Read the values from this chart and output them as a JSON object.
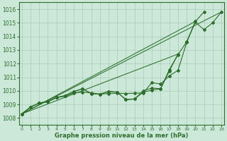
{
  "xlabel": "Graphe pression niveau de la mer (hPa)",
  "background_color": "#cce8d8",
  "grid_color": "#aaccb8",
  "line_color": "#2d6e2d",
  "ylim": [
    1007.5,
    1016.5
  ],
  "xlim": [
    -0.3,
    23.3
  ],
  "yticks": [
    1008,
    1009,
    1010,
    1011,
    1012,
    1013,
    1014,
    1015,
    1016
  ],
  "xticks": [
    0,
    1,
    2,
    3,
    4,
    5,
    6,
    7,
    8,
    9,
    10,
    11,
    12,
    13,
    14,
    15,
    16,
    17,
    18,
    19,
    20,
    21,
    22,
    23
  ],
  "line_wavy": [
    1008.3,
    1008.8,
    1009.1,
    1009.2,
    1009.5,
    1009.6,
    1009.85,
    1009.9,
    1009.85,
    1009.75,
    1009.8,
    1009.82,
    1009.8,
    1009.82,
    1009.85,
    1010.6,
    1010.5,
    1011.1,
    1011.5,
    1013.55,
    1015.05,
    1014.5,
    1015.0,
    1015.8
  ],
  "line_mid": [
    1008.3,
    1008.8,
    1009.1,
    1009.2,
    1009.5,
    1009.65,
    1009.95,
    1010.15,
    1009.8,
    1009.75,
    1009.95,
    1009.9,
    1009.35,
    1009.4,
    1009.9,
    1010.05,
    1010.15,
    1011.45,
    1012.7,
    null,
    null,
    null,
    null,
    null
  ],
  "line_upper": [
    1008.3,
    1008.8,
    1009.1,
    1009.2,
    1009.5,
    1009.65,
    1009.95,
    1010.15,
    1009.8,
    1009.75,
    1009.95,
    1009.9,
    1009.35,
    1009.4,
    1010.0,
    1010.2,
    1010.15,
    1011.55,
    1012.65,
    1013.6,
    1015.1,
    1015.8,
    null,
    null
  ],
  "straight_lines": [
    [
      0,
      23,
      1008.3,
      1015.8
    ],
    [
      0,
      20,
      1008.3,
      1015.1
    ],
    [
      0,
      18,
      1008.3,
      1012.7
    ]
  ]
}
